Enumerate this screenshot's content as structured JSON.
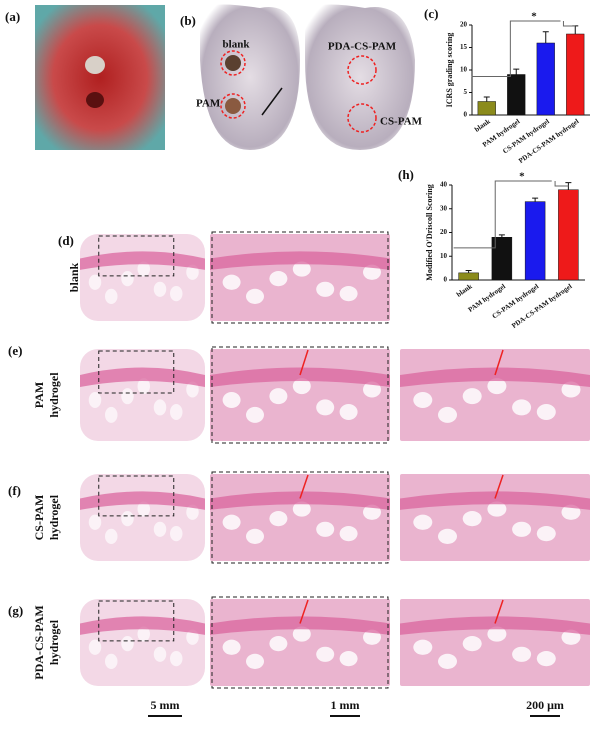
{
  "panels": {
    "a": "(a)",
    "b": "(b)",
    "c": "(c)",
    "d": "(d)",
    "e": "(e)",
    "f": "(f)",
    "g": "(g)",
    "h": "(h)"
  },
  "photo_b": {
    "blank": "blank",
    "pam": "PAM",
    "pda": "PDA-CS-PAM",
    "cs": "CS-PAM"
  },
  "rows": [
    {
      "label": [
        "blank"
      ]
    },
    {
      "label": [
        "PAM",
        "hydrogel"
      ]
    },
    {
      "label": [
        "CS-PAM",
        "hydrogel"
      ]
    },
    {
      "label": [
        "PDA-CS-PAM",
        "hydrogel"
      ]
    }
  ],
  "scale_bars": [
    "5 mm",
    "1 mm",
    "200 μm"
  ],
  "chart_data": [
    {
      "type": "bar",
      "y_label": "ICRS grading scoring",
      "categories": [
        "blank",
        "PAM hydrogel",
        "CS-PAM hydrogel",
        "PDA-CS-PAM hydrogel"
      ],
      "values": [
        3,
        9,
        16,
        18
      ],
      "errors": [
        1,
        1.2,
        2.5,
        1.8
      ],
      "colors": [
        "#8b8b1c",
        "#111111",
        "#1a1aee",
        "#ee1a1a"
      ],
      "ylim": [
        0,
        20
      ],
      "yticks": [
        0,
        5,
        10,
        15,
        20
      ],
      "annotation": "*"
    },
    {
      "type": "bar",
      "y_label": "Modified O'Driscoll Scoring",
      "categories": [
        "blank",
        "PAM hydrogel",
        "CS-PAM hydrogel",
        "PDA-CS-PAM hydrogel"
      ],
      "values": [
        3,
        18,
        33,
        38
      ],
      "errors": [
        1,
        1,
        1.5,
        3
      ],
      "colors": [
        "#8b8b1c",
        "#111111",
        "#1a1aee",
        "#ee1a1a"
      ],
      "ylim": [
        0,
        40
      ],
      "yticks": [
        0,
        10,
        20,
        30,
        40
      ],
      "annotation": "*"
    }
  ]
}
